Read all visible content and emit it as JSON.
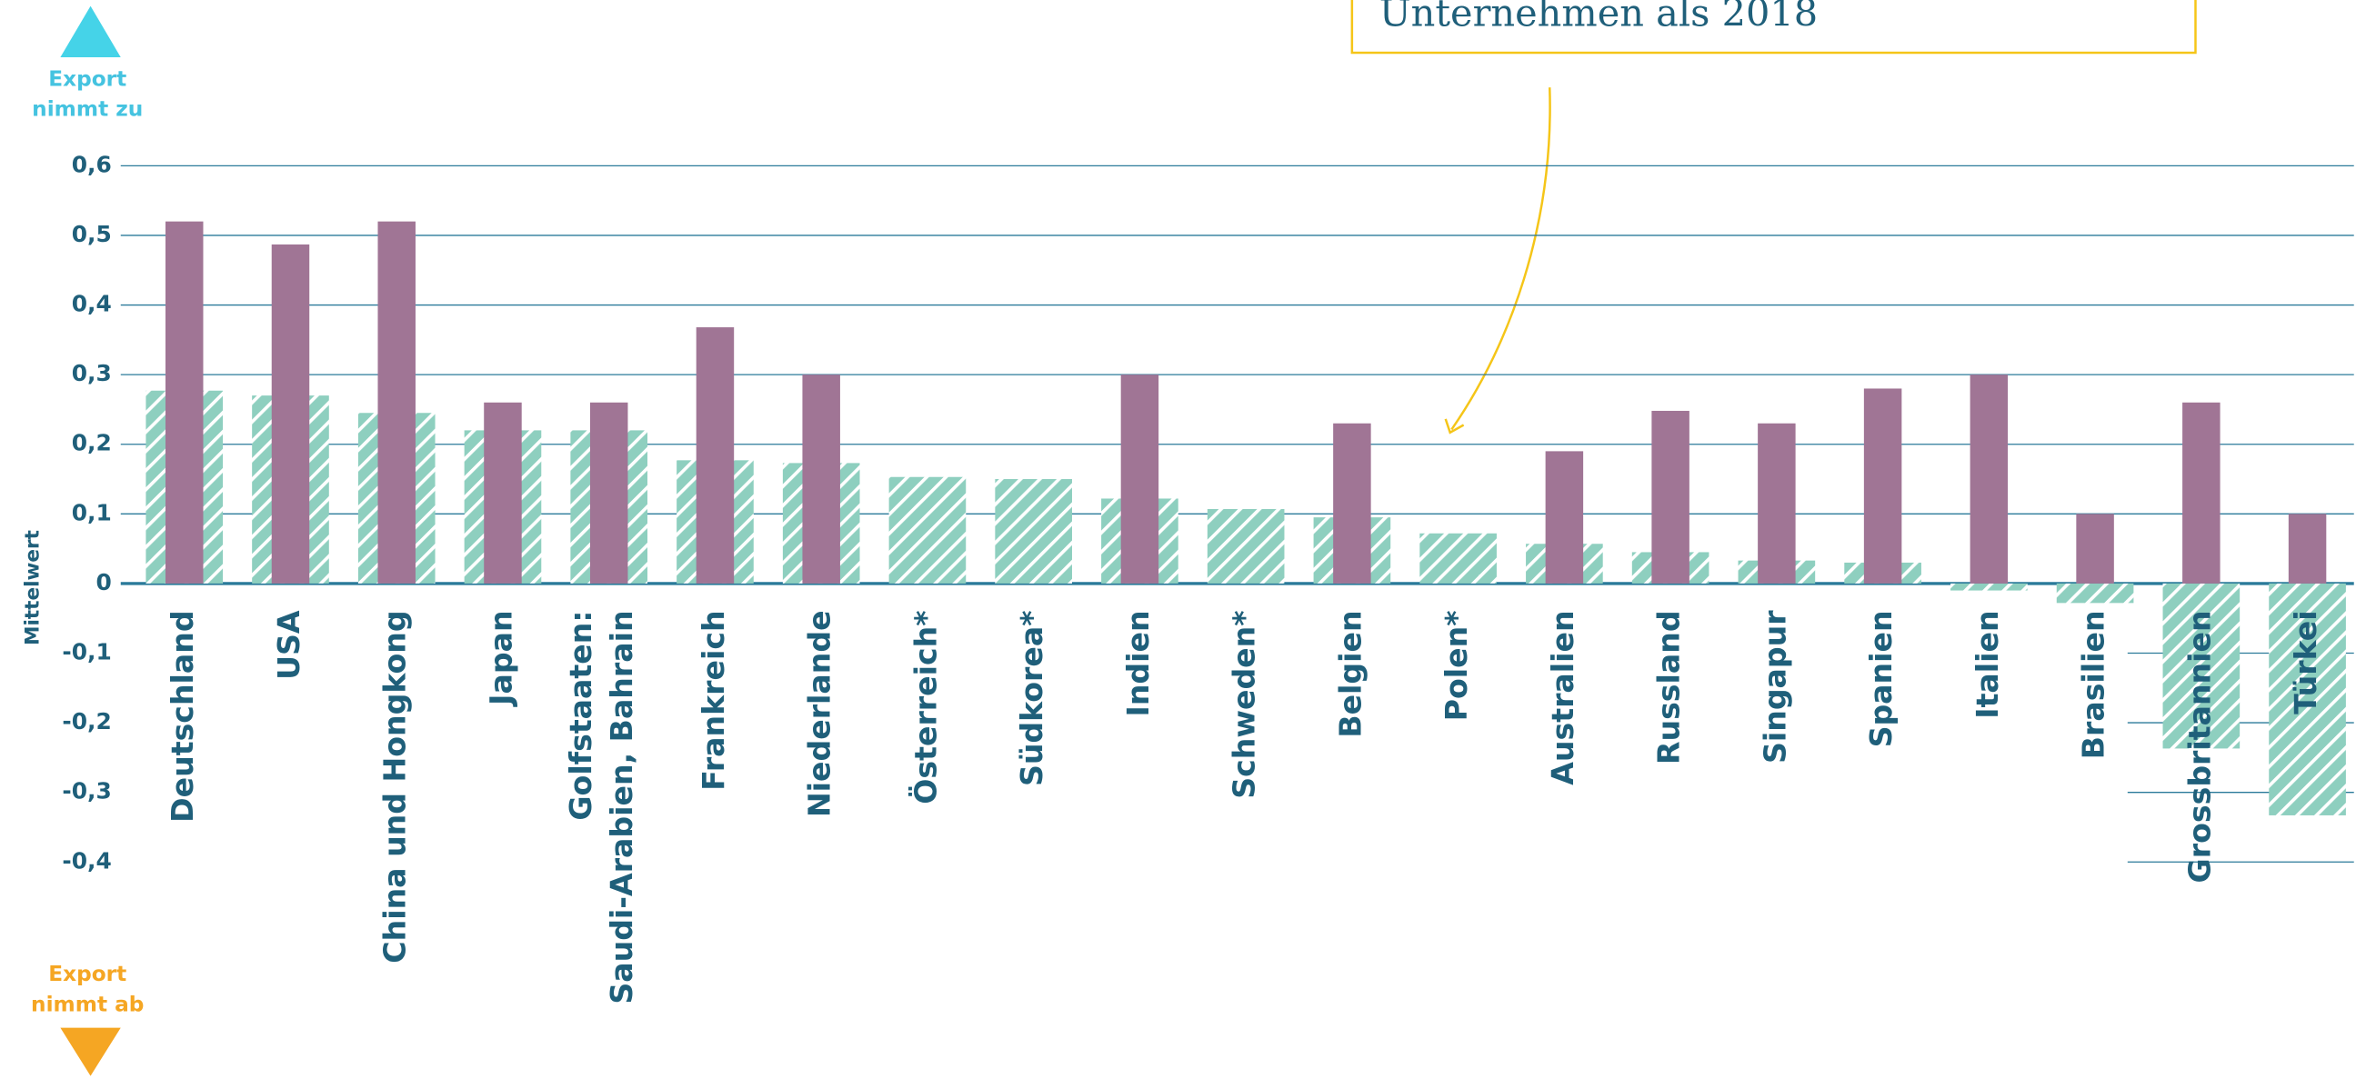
{
  "chart_data": {
    "type": "bar",
    "ylabel": "Mittelwert",
    "annotation": "Unternehmen als 2018",
    "top_note": [
      "Export",
      "nimmt zu"
    ],
    "bottom_note": [
      "Export",
      "nimmt ab"
    ],
    "categories": [
      "Deutschland",
      "USA",
      "China und Hongkong",
      "Japan",
      [
        "Golfstaaten:",
        "Saudi-Arabien, Bahrain"
      ],
      "Frankreich",
      "Niederlande",
      "Österreich*",
      "Südkorea*",
      "Indien",
      "Schweden*",
      "Belgien",
      "Polen*",
      "Australien",
      "Russland",
      "Singapur",
      "Spanien",
      "Italien",
      "Brasilien",
      "Grossbritannien",
      "Türkei"
    ],
    "series": [
      {
        "color": "#8ecfbf",
        "values": [
          0.277,
          0.27,
          0.245,
          0.22,
          0.22,
          0.177,
          0.173,
          0.153,
          0.15,
          0.122,
          0.107,
          0.095,
          0.072,
          0.057,
          0.045,
          0.033,
          0.03,
          -0.01,
          -0.028,
          -0.237,
          -0.333
        ]
      },
      {
        "color": "#a07595",
        "values": [
          0.52,
          0.487,
          0.52,
          0.26,
          0.26,
          0.368,
          0.3,
          null,
          null,
          0.3,
          null,
          0.23,
          null,
          0.19,
          0.248,
          0.23,
          0.28,
          0.3,
          0.1,
          0.26,
          0.1
        ]
      }
    ],
    "ylim": [
      -0.4,
      0.6
    ],
    "yticks": [
      {
        "value": 0.6,
        "label": "0,6"
      },
      {
        "value": 0.5,
        "label": "0,5"
      },
      {
        "value": 0.4,
        "label": "0,4"
      },
      {
        "value": 0.3,
        "label": "0,3"
      },
      {
        "value": 0.2,
        "label": "0,2"
      },
      {
        "value": 0.1,
        "label": "0,1"
      },
      0,
      {
        "value": -0.1,
        "label": "-0,1"
      },
      {
        "value": -0.2,
        "label": "-0,2"
      },
      {
        "value": -0.3,
        "label": "-0,3"
      },
      {
        "value": -0.4,
        "label": "-0,4"
      }
    ],
    "grid": true
  }
}
